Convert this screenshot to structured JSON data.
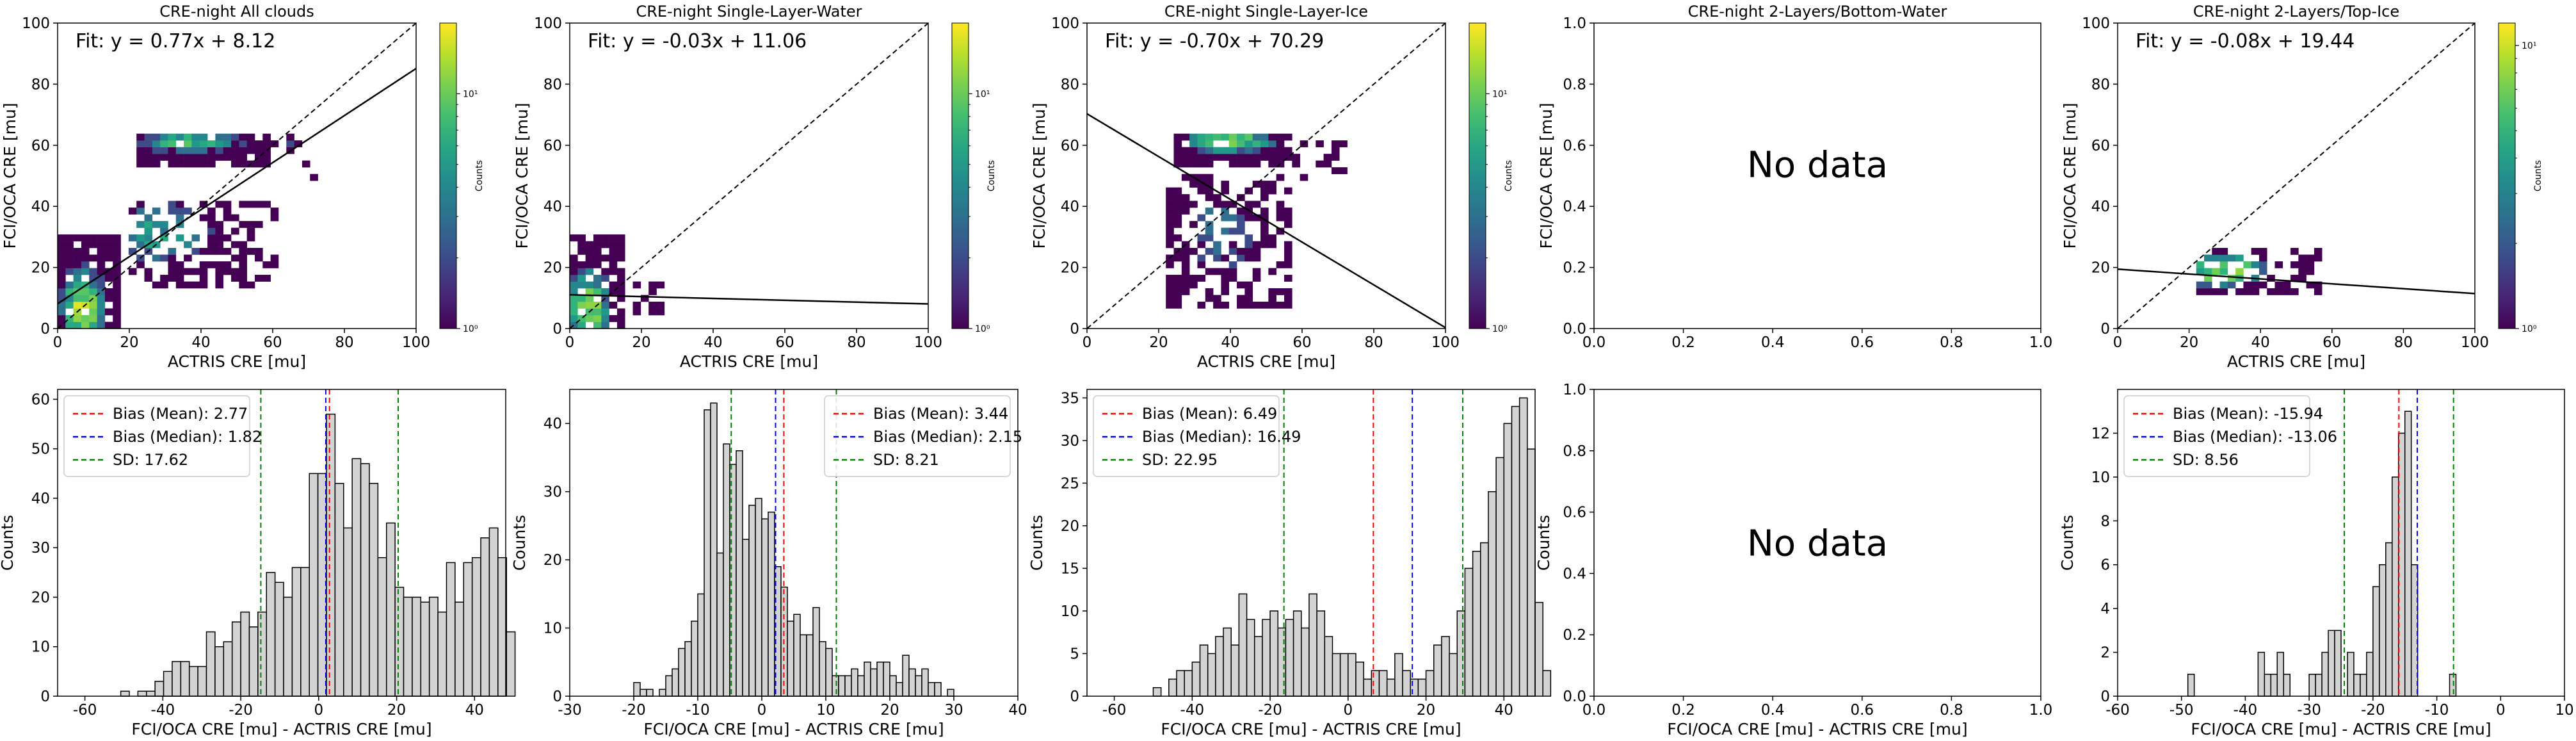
{
  "chart_data": [
    {
      "type": "heatmap",
      "title": "CRE-night All clouds",
      "xlabel": "ACTRIS CRE [mu]",
      "ylabel": "FCI/OCA CRE [mu]",
      "xlim": [
        0,
        100
      ],
      "ylim": [
        0,
        100
      ],
      "xticks": [
        "0",
        "20",
        "40",
        "60",
        "80",
        "100"
      ],
      "yticks": [
        "0",
        "20",
        "40",
        "60",
        "80",
        "100"
      ],
      "fit_label": "Fit: y = 0.77x + 8.12",
      "fit": {
        "slope": 0.77,
        "intercept": 8.12
      },
      "colorbar": {
        "label": "Counts",
        "ticks": [
          "10⁰",
          "10¹"
        ],
        "scale": "log",
        "range": [
          1,
          20
        ]
      },
      "cell_size": 2.2,
      "clusters": [
        {
          "x": [
            2,
            16
          ],
          "y": [
            0,
            30
          ],
          "density": 0.85,
          "peak": [
            6,
            6
          ],
          "max": 20
        },
        {
          "x": [
            20,
            60
          ],
          "y": [
            14,
            40
          ],
          "density": 0.55,
          "peak": [
            28,
            30
          ],
          "max": 8
        },
        {
          "x": [
            22,
            58
          ],
          "y": [
            55,
            62
          ],
          "density": 0.9,
          "peak": [
            36,
            60
          ],
          "max": 12
        },
        {
          "x": [
            60,
            72
          ],
          "y": [
            50,
            62
          ],
          "density": 0.25,
          "peak": [
            64,
            58
          ],
          "max": 2
        }
      ],
      "seed": 11
    },
    {
      "type": "heatmap",
      "title": "CRE-night Single-Layer-Water",
      "xlabel": "ACTRIS CRE [mu]",
      "ylabel": "FCI/OCA CRE [mu]",
      "xlim": [
        0,
        100
      ],
      "ylim": [
        0,
        100
      ],
      "xticks": [
        "0",
        "20",
        "40",
        "60",
        "80",
        "100"
      ],
      "yticks": [
        "0",
        "20",
        "40",
        "60",
        "80",
        "100"
      ],
      "fit_label": "Fit: y = -0.03x + 11.06",
      "fit": {
        "slope": -0.03,
        "intercept": 11.06
      },
      "colorbar": {
        "label": "Counts",
        "ticks": [
          "10⁰",
          "10¹"
        ],
        "scale": "log",
        "range": [
          1,
          20
        ]
      },
      "cell_size": 2.2,
      "clusters": [
        {
          "x": [
            0,
            14
          ],
          "y": [
            0,
            30
          ],
          "density": 0.8,
          "peak": [
            4,
            6
          ],
          "max": 18
        },
        {
          "x": [
            14,
            26
          ],
          "y": [
            6,
            14
          ],
          "density": 0.3,
          "peak": [
            16,
            10
          ],
          "max": 2
        }
      ],
      "seed": 23
    },
    {
      "type": "heatmap",
      "title": "CRE-night Single-Layer-Ice",
      "xlabel": "ACTRIS CRE [mu]",
      "ylabel": "FCI/OCA CRE [mu]",
      "xlim": [
        0,
        100
      ],
      "ylim": [
        0,
        100
      ],
      "xticks": [
        "0",
        "20",
        "40",
        "60",
        "80",
        "100"
      ],
      "yticks": [
        "0",
        "20",
        "40",
        "60",
        "80",
        "100"
      ],
      "fit_label": "Fit: y = -0.70x + 70.29",
      "fit": {
        "slope": -0.7,
        "intercept": 70.29
      },
      "colorbar": {
        "label": "Counts",
        "ticks": [
          "10⁰",
          "10¹"
        ],
        "scale": "log",
        "range": [
          1,
          20
        ]
      },
      "cell_size": 2.2,
      "clusters": [
        {
          "x": [
            24,
            56
          ],
          "y": [
            8,
            50
          ],
          "density": 0.5,
          "peak": [
            36,
            30
          ],
          "max": 4
        },
        {
          "x": [
            26,
            56
          ],
          "y": [
            55,
            62
          ],
          "density": 0.9,
          "peak": [
            38,
            60
          ],
          "max": 20
        },
        {
          "x": [
            58,
            72
          ],
          "y": [
            50,
            60
          ],
          "density": 0.25,
          "peak": [
            62,
            56
          ],
          "max": 2
        }
      ],
      "seed": 37
    },
    {
      "type": "heatmap",
      "title": "CRE-night 2-Layers/Bottom-Water",
      "xlabel": "",
      "ylabel": "FCI/OCA CRE [mu]",
      "xlim": [
        0,
        1
      ],
      "ylim": [
        0,
        1
      ],
      "xticks": [
        "0.0",
        "0.2",
        "0.4",
        "0.6",
        "0.8",
        "1.0"
      ],
      "yticks": [
        "0.0",
        "0.2",
        "0.4",
        "0.6",
        "0.8",
        "1.0"
      ],
      "annotation": "No data",
      "clusters": []
    },
    {
      "type": "heatmap",
      "title": "CRE-night 2-Layers/Top-Ice",
      "xlabel": "ACTRIS CRE [mu]",
      "ylabel": "FCI/OCA CRE [mu]",
      "xlim": [
        0,
        100
      ],
      "ylim": [
        0,
        100
      ],
      "xticks": [
        "0",
        "20",
        "40",
        "60",
        "80",
        "100"
      ],
      "yticks": [
        "0",
        "20",
        "40",
        "60",
        "80",
        "100"
      ],
      "fit_label": "Fit: y = -0.08x + 19.44",
      "fit": {
        "slope": -0.08,
        "intercept": 19.44
      },
      "colorbar": {
        "label": "Counts",
        "ticks": [
          "10⁰",
          "10¹"
        ],
        "scale": "log",
        "range": [
          1,
          12
        ]
      },
      "cell_size": 2.2,
      "clusters": [
        {
          "x": [
            22,
            56
          ],
          "y": [
            12,
            26
          ],
          "density": 0.55,
          "peak": [
            28,
            18
          ],
          "max": 12
        }
      ],
      "seed": 53
    },
    {
      "type": "bar",
      "xlabel": "FCI/OCA CRE [mu] - ACTRIS CRE [mu]",
      "ylabel": "Counts",
      "xlim": [
        -67,
        48
      ],
      "ylim": [
        0,
        62
      ],
      "xticks": [
        -60,
        -40,
        -20,
        0,
        20,
        40
      ],
      "yticks": [
        0,
        10,
        20,
        30,
        40,
        50,
        60
      ],
      "bin_start": -64,
      "bin_width": 2.2,
      "counts": [
        0,
        0,
        0,
        0,
        0,
        0,
        1,
        0,
        1,
        1,
        3,
        5,
        7,
        7,
        6,
        6,
        13,
        10,
        11,
        15,
        17,
        14,
        17,
        25,
        23,
        20,
        26,
        26,
        45,
        45,
        57,
        43,
        34,
        48,
        47,
        43,
        28,
        35,
        22,
        20,
        20,
        19,
        20,
        17,
        27,
        19,
        27,
        28,
        32,
        34,
        28,
        13
      ],
      "lines": [
        {
          "label": "Bias (Mean): 2.77",
          "value": 2.77,
          "color": "#ff0000"
        },
        {
          "label": "Bias (Median): 1.82",
          "value": 1.82,
          "color": "#0000ff"
        },
        {
          "label": "SD: 17.62",
          "value": 17.62,
          "color": "#008000",
          "spread_of": 2.77
        }
      ],
      "legend": "top-left"
    },
    {
      "type": "bar",
      "xlabel": "FCI/OCA CRE [mu] - ACTRIS CRE [mu]",
      "ylabel": "Counts",
      "xlim": [
        -30,
        40
      ],
      "ylim": [
        0,
        45
      ],
      "xticks": [
        -30,
        -20,
        -10,
        0,
        10,
        20,
        30,
        40
      ],
      "yticks": [
        0,
        10,
        20,
        30,
        40
      ],
      "bin_start": -20,
      "bin_width": 1.0,
      "counts": [
        2,
        1,
        1,
        0,
        1,
        3,
        4,
        7,
        8,
        11,
        15,
        42,
        43,
        21,
        37,
        34,
        36,
        23,
        28,
        29,
        26,
        27,
        19,
        16,
        11,
        12,
        9,
        9,
        13,
        8,
        7,
        3,
        3,
        3,
        4,
        3,
        5,
        4,
        5,
        5,
        3,
        2,
        6,
        4,
        3,
        4,
        2,
        2,
        0,
        1
      ],
      "lines": [
        {
          "label": "Bias (Mean): 3.44",
          "value": 3.44,
          "color": "#ff0000"
        },
        {
          "label": "Bias (Median): 2.15",
          "value": 2.15,
          "color": "#0000ff"
        },
        {
          "label": "SD: 8.21",
          "value": 8.21,
          "color": "#008000",
          "spread_of": 3.44
        }
      ],
      "legend": "top-right"
    },
    {
      "type": "bar",
      "xlabel": "FCI/OCA CRE [mu] - ACTRIS CRE [mu]",
      "ylabel": "Counts",
      "xlim": [
        -67,
        48
      ],
      "ylim": [
        0,
        36
      ],
      "xticks": [
        -60,
        -40,
        -20,
        0,
        20,
        40
      ],
      "yticks": [
        0,
        5,
        10,
        15,
        20,
        25,
        30,
        35
      ],
      "bin_start": -62,
      "bin_width": 2.0,
      "counts": [
        0,
        0,
        0,
        0,
        0,
        0,
        1,
        0,
        2,
        3,
        3,
        4,
        6,
        5,
        7,
        8,
        6,
        12,
        9,
        7,
        9,
        10,
        8,
        9,
        10,
        8,
        12,
        10,
        7,
        5,
        5,
        5,
        4,
        2,
        3,
        3,
        2,
        5,
        3,
        2,
        2,
        3,
        6,
        7,
        5,
        10,
        15,
        17,
        18,
        24,
        28,
        32,
        34,
        35,
        29,
        11,
        3
      ],
      "lines": [
        {
          "label": "Bias (Mean): 6.49",
          "value": 6.49,
          "color": "#ff0000"
        },
        {
          "label": "Bias (Median): 16.49",
          "value": 16.49,
          "color": "#0000ff"
        },
        {
          "label": "SD: 22.95",
          "value": 22.95,
          "color": "#008000",
          "spread_of": 6.49
        }
      ],
      "legend": "top-left"
    },
    {
      "type": "bar",
      "xlabel": "FCI/OCA CRE [mu] - ACTRIS CRE [mu]",
      "ylabel": "Counts",
      "xlim": [
        0,
        1
      ],
      "ylim": [
        0,
        1
      ],
      "xticks": [
        "0.0",
        "0.2",
        "0.4",
        "0.6",
        "0.8",
        "1.0"
      ],
      "yticks": [
        "0.0",
        "0.2",
        "0.4",
        "0.6",
        "0.8",
        "1.0"
      ],
      "annotation": "No data",
      "counts": [],
      "lines": []
    },
    {
      "type": "bar",
      "xlabel": "FCI/OCA CRE [mu] - ACTRIS CRE [mu]",
      "ylabel": "Counts",
      "xlim": [
        -60,
        10
      ],
      "ylim": [
        0,
        14
      ],
      "xticks": [
        -60,
        -50,
        -40,
        -30,
        -20,
        -10,
        0,
        10
      ],
      "yticks": [
        0,
        2,
        4,
        6,
        8,
        10,
        12
      ],
      "bin_start": -49,
      "bin_width": 1.0,
      "counts": [
        1,
        0,
        0,
        0,
        0,
        0,
        0,
        0,
        0,
        0,
        0,
        2,
        1,
        1,
        2,
        1,
        0,
        0,
        0,
        1,
        1,
        2,
        3,
        3,
        0,
        2,
        1,
        1,
        2,
        5,
        6,
        7,
        10,
        12,
        13,
        6,
        0,
        0,
        0,
        0,
        0,
        1
      ],
      "lines": [
        {
          "label": "Bias (Mean): -15.94",
          "value": -15.94,
          "color": "#ff0000"
        },
        {
          "label": "Bias (Median): -13.06",
          "value": -13.06,
          "color": "#0000ff"
        },
        {
          "label": "SD: 8.56",
          "value": 8.56,
          "color": "#008000",
          "spread_of": -15.94
        }
      ],
      "legend": "top-left"
    }
  ]
}
